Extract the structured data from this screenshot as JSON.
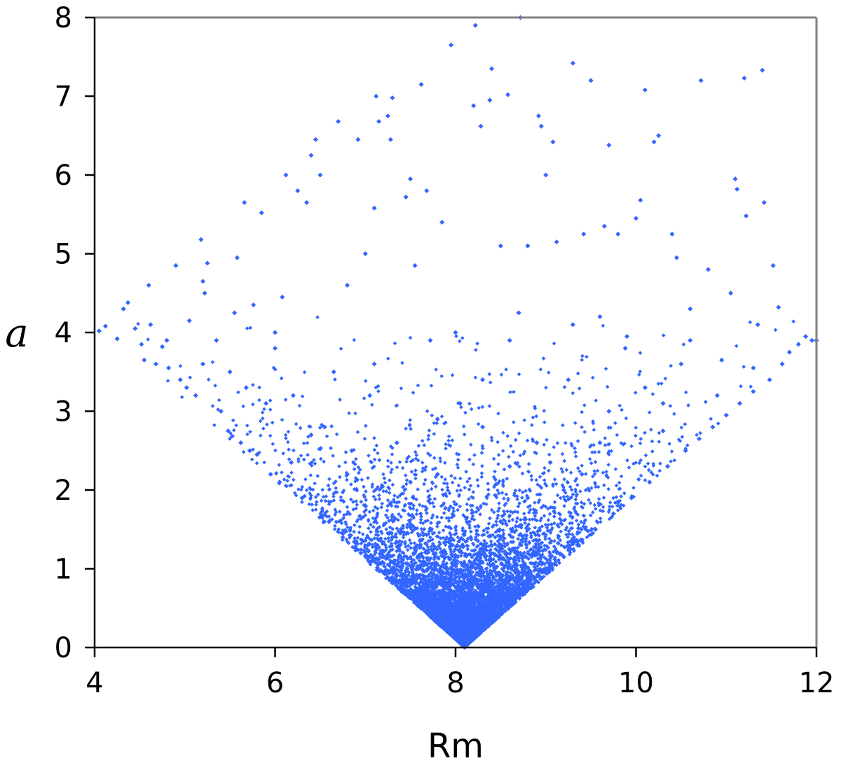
{
  "chart_data": {
    "type": "scatter",
    "title": "",
    "xlabel": "Rm",
    "ylabel": "a",
    "xlim": [
      4,
      12
    ],
    "ylim": [
      0,
      8
    ],
    "x_ticks": [
      "4",
      "6",
      "8",
      "10",
      "12"
    ],
    "y_ticks": [
      "0",
      "1",
      "2",
      "3",
      "4",
      "5",
      "6",
      "7",
      "8"
    ],
    "grid": false,
    "legend": "none",
    "marker_color": "#3366ff",
    "axis_color": "#808080",
    "frame_color_bottom_left": "#000000",
    "distribution": {
      "vertex": [
        8.1,
        0
      ],
      "lower_boundary": "a = |Rm - 8.1|",
      "note_density": "dense below a≈2, sparse above a≈3.5"
    },
    "points": [
      [
        4.05,
        4.02
      ],
      [
        4.12,
        4.08
      ],
      [
        4.25,
        3.92
      ],
      [
        4.32,
        4.3
      ],
      [
        4.37,
        4.38
      ],
      [
        4.45,
        4.05
      ],
      [
        4.52,
        3.85
      ],
      [
        4.55,
        3.65
      ],
      [
        4.6,
        4.6
      ],
      [
        4.62,
        4.1
      ],
      [
        4.68,
        3.6
      ],
      [
        4.75,
        3.82
      ],
      [
        4.82,
        3.55
      ],
      [
        4.9,
        4.85
      ],
      [
        4.95,
        3.4
      ],
      [
        5.02,
        3.3
      ],
      [
        5.05,
        4.15
      ],
      [
        5.12,
        3.2
      ],
      [
        5.18,
        5.18
      ],
      [
        5.2,
        4.65
      ],
      [
        5.22,
        4.5
      ],
      [
        5.25,
        4.88
      ],
      [
        5.35,
        3.9
      ],
      [
        5.4,
        3.0
      ],
      [
        5.48,
        2.75
      ],
      [
        5.55,
        4.25
      ],
      [
        5.58,
        4.95
      ],
      [
        5.62,
        2.6
      ],
      [
        5.66,
        5.65
      ],
      [
        5.68,
        3.3
      ],
      [
        5.72,
        2.5
      ],
      [
        5.76,
        4.35
      ],
      [
        5.8,
        2.45
      ],
      [
        5.85,
        5.52
      ],
      [
        5.9,
        3.1
      ],
      [
        5.95,
        2.2
      ],
      [
        6.0,
        3.8
      ],
      [
        6.05,
        2.1
      ],
      [
        6.08,
        4.45
      ],
      [
        6.12,
        6.0
      ],
      [
        6.18,
        2.35
      ],
      [
        6.25,
        5.8
      ],
      [
        6.3,
        1.9
      ],
      [
        6.35,
        5.65
      ],
      [
        6.4,
        6.25
      ],
      [
        6.45,
        6.45
      ],
      [
        6.5,
        6.0
      ],
      [
        6.55,
        2.8
      ],
      [
        6.6,
        1.6
      ],
      [
        6.65,
        3.5
      ],
      [
        6.7,
        6.68
      ],
      [
        6.75,
        1.4
      ],
      [
        6.8,
        4.6
      ],
      [
        6.85,
        2.5
      ],
      [
        6.92,
        6.45
      ],
      [
        6.95,
        1.2
      ],
      [
        7.0,
        5.0
      ],
      [
        7.05,
        3.2
      ],
      [
        7.1,
        5.58
      ],
      [
        7.12,
        7.0
      ],
      [
        7.15,
        6.68
      ],
      [
        7.2,
        0.95
      ],
      [
        7.25,
        6.75
      ],
      [
        7.28,
        6.45
      ],
      [
        7.3,
        6.98
      ],
      [
        7.35,
        2.6
      ],
      [
        7.4,
        0.75
      ],
      [
        7.45,
        5.72
      ],
      [
        7.5,
        5.95
      ],
      [
        7.55,
        4.85
      ],
      [
        7.6,
        0.55
      ],
      [
        7.62,
        7.15
      ],
      [
        7.68,
        5.8
      ],
      [
        7.72,
        3.9
      ],
      [
        7.75,
        0.4
      ],
      [
        7.8,
        2.2
      ],
      [
        7.85,
        5.4
      ],
      [
        7.9,
        0.25
      ],
      [
        7.95,
        7.65
      ],
      [
        8.0,
        0.15
      ],
      [
        8.05,
        3.1
      ],
      [
        8.1,
        0.05
      ],
      [
        8.15,
        0.12
      ],
      [
        8.2,
        6.88
      ],
      [
        8.22,
        7.9
      ],
      [
        8.25,
        0.2
      ],
      [
        8.28,
        6.62
      ],
      [
        8.3,
        2.8
      ],
      [
        8.35,
        0.3
      ],
      [
        8.38,
        6.95
      ],
      [
        8.4,
        7.35
      ],
      [
        8.45,
        0.4
      ],
      [
        8.5,
        5.1
      ],
      [
        8.55,
        0.5
      ],
      [
        8.58,
        7.02
      ],
      [
        8.6,
        3.9
      ],
      [
        8.65,
        0.6
      ],
      [
        8.7,
        4.25
      ],
      [
        8.72,
        8.0
      ],
      [
        8.75,
        0.7
      ],
      [
        8.8,
        5.1
      ],
      [
        8.85,
        0.8
      ],
      [
        8.9,
        2.6
      ],
      [
        8.92,
        6.75
      ],
      [
        8.95,
        6.62
      ],
      [
        9.0,
        6.0
      ],
      [
        9.05,
        1.0
      ],
      [
        9.08,
        6.42
      ],
      [
        9.12,
        5.15
      ],
      [
        9.2,
        1.15
      ],
      [
        9.25,
        3.4
      ],
      [
        9.3,
        7.42
      ],
      [
        9.35,
        1.3
      ],
      [
        9.42,
        5.25
      ],
      [
        9.5,
        7.2
      ],
      [
        9.55,
        1.5
      ],
      [
        9.6,
        4.2
      ],
      [
        9.65,
        5.35
      ],
      [
        9.7,
        6.38
      ],
      [
        9.75,
        1.7
      ],
      [
        9.8,
        5.25
      ],
      [
        9.88,
        3.8
      ],
      [
        9.95,
        1.9
      ],
      [
        10.0,
        5.45
      ],
      [
        10.05,
        5.68
      ],
      [
        10.1,
        7.08
      ],
      [
        10.15,
        2.1
      ],
      [
        10.2,
        6.42
      ],
      [
        10.25,
        6.5
      ],
      [
        10.3,
        3.1
      ],
      [
        10.35,
        2.3
      ],
      [
        10.4,
        5.25
      ],
      [
        10.45,
        4.95
      ],
      [
        10.55,
        2.5
      ],
      [
        10.6,
        4.3
      ],
      [
        10.7,
        2.65
      ],
      [
        10.72,
        7.2
      ],
      [
        10.8,
        4.8
      ],
      [
        10.85,
        2.8
      ],
      [
        10.95,
        3.65
      ],
      [
        11.0,
        2.95
      ],
      [
        11.05,
        4.5
      ],
      [
        11.1,
        5.95
      ],
      [
        11.12,
        5.82
      ],
      [
        11.15,
        3.1
      ],
      [
        11.2,
        7.23
      ],
      [
        11.22,
        5.48
      ],
      [
        11.3,
        3.25
      ],
      [
        11.35,
        4.1
      ],
      [
        11.4,
        7.33
      ],
      [
        11.42,
        5.65
      ],
      [
        11.48,
        3.4
      ],
      [
        11.52,
        4.85
      ],
      [
        11.58,
        4.32
      ],
      [
        11.62,
        3.6
      ],
      [
        11.7,
        3.75
      ],
      [
        11.8,
        3.85
      ],
      [
        11.88,
        3.95
      ],
      [
        11.95,
        3.9
      ],
      [
        12.0,
        3.9
      ],
      [
        9.05,
        2.35
      ],
      [
        9.4,
        2.2
      ],
      [
        9.7,
        3.0
      ],
      [
        10.1,
        3.3
      ],
      [
        10.5,
        3.6
      ],
      [
        6.2,
        3.2
      ],
      [
        6.0,
        4.0
      ],
      [
        5.5,
        3.5
      ],
      [
        7.0,
        1.8
      ],
      [
        7.5,
        2.1
      ],
      [
        8.5,
        1.6
      ],
      [
        8.8,
        1.9
      ],
      [
        7.3,
        1.4
      ],
      [
        8.6,
        2.3
      ],
      [
        9.2,
        2.0
      ],
      [
        6.8,
        2.2
      ],
      [
        7.8,
        2.9
      ],
      [
        8.3,
        3.4
      ],
      [
        9.6,
        2.6
      ],
      [
        10.3,
        2.75
      ],
      [
        10.9,
        3.2
      ],
      [
        11.3,
        3.55
      ],
      [
        5.2,
        3.6
      ],
      [
        4.8,
        3.9
      ],
      [
        6.4,
        2.7
      ],
      [
        7.1,
        3.6
      ],
      [
        8.0,
        4.0
      ],
      [
        9.3,
        4.1
      ],
      [
        9.9,
        3.95
      ],
      [
        10.6,
        3.9
      ]
    ]
  }
}
